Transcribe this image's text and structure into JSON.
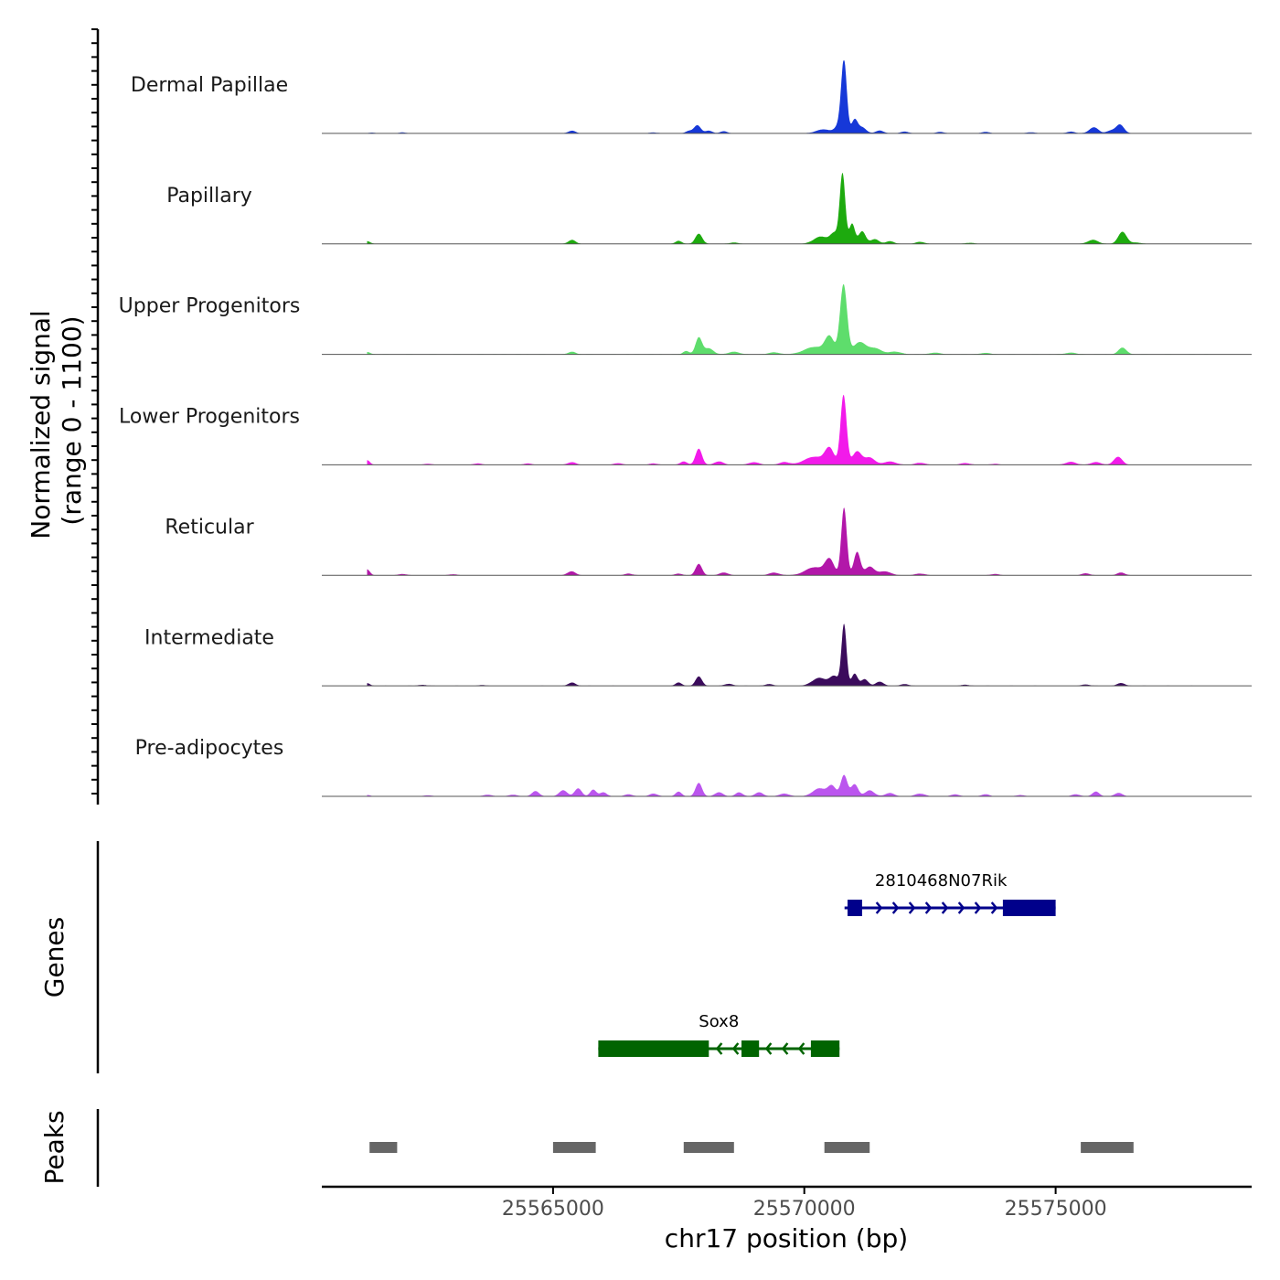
{
  "chart_data": {
    "type": "area",
    "title": "",
    "ylabel": "Normalized signal\n(range 0 - 1100)",
    "ylabel_lines": [
      "Normalized signal",
      "(range 0 - 1100)"
    ],
    "xlabel": "chr17 position (bp)",
    "xlim": [
      25560400,
      25578900
    ],
    "ylim": [
      0,
      1100
    ],
    "xticks": [
      25565000,
      25570000,
      25575000
    ],
    "xtick_labels": [
      "25565000",
      "25570000",
      "25575000"
    ],
    "tracks": [
      {
        "name": "Dermal Papillae",
        "color": "#1638D8",
        "peaks": [
          [
            25561400,
            10,
            60
          ],
          [
            25562000,
            15,
            60
          ],
          [
            25565380,
            40,
            70
          ],
          [
            25567000,
            12,
            80
          ],
          [
            25567870,
            120,
            70
          ],
          [
            25567700,
            35,
            60
          ],
          [
            25568100,
            40,
            70
          ],
          [
            25568400,
            30,
            70
          ],
          [
            25570380,
            60,
            140
          ],
          [
            25570700,
            130,
            80
          ],
          [
            25570790,
            1050,
            55
          ],
          [
            25571000,
            200,
            60
          ],
          [
            25571150,
            90,
            80
          ],
          [
            25571500,
            40,
            80
          ],
          [
            25572000,
            25,
            80
          ],
          [
            25572700,
            20,
            80
          ],
          [
            25573600,
            20,
            80
          ],
          [
            25574500,
            15,
            80
          ],
          [
            25575300,
            25,
            80
          ],
          [
            25575760,
            90,
            90
          ],
          [
            25576280,
            130,
            80
          ],
          [
            25576100,
            40,
            80
          ]
        ]
      },
      {
        "name": "Papillary",
        "color": "#1DAA0E",
        "peaks": [
          [
            25561300,
            40,
            60
          ],
          [
            25565380,
            60,
            70
          ],
          [
            25567500,
            45,
            60
          ],
          [
            25567900,
            150,
            70
          ],
          [
            25568600,
            20,
            80
          ],
          [
            25570330,
            110,
            140
          ],
          [
            25570600,
            150,
            80
          ],
          [
            25570760,
            1050,
            55
          ],
          [
            25570950,
            300,
            55
          ],
          [
            25571150,
            190,
            70
          ],
          [
            25571400,
            70,
            80
          ],
          [
            25571700,
            40,
            80
          ],
          [
            25572300,
            30,
            80
          ],
          [
            25575740,
            60,
            100
          ],
          [
            25576330,
            180,
            85
          ],
          [
            25576600,
            20,
            80
          ],
          [
            25573300,
            15,
            80
          ]
        ]
      },
      {
        "name": "Upper Progenitors",
        "color": "#5EDD6C",
        "peaks": [
          [
            25561300,
            35,
            60
          ],
          [
            25565380,
            40,
            70
          ],
          [
            25567650,
            50,
            60
          ],
          [
            25567900,
            250,
            65
          ],
          [
            25568100,
            90,
            90
          ],
          [
            25568600,
            40,
            100
          ],
          [
            25569400,
            30,
            100
          ],
          [
            25570200,
            110,
            200
          ],
          [
            25570500,
            250,
            90
          ],
          [
            25570780,
            1050,
            70
          ],
          [
            25571100,
            180,
            120
          ],
          [
            25571400,
            90,
            130
          ],
          [
            25571800,
            40,
            120
          ],
          [
            25572600,
            25,
            100
          ],
          [
            25573600,
            20,
            100
          ],
          [
            25575300,
            25,
            100
          ],
          [
            25576330,
            100,
            80
          ]
        ]
      },
      {
        "name": "Lower Progenitors",
        "color": "#F21AEA",
        "peaks": [
          [
            25561300,
            70,
            55
          ],
          [
            25562500,
            15,
            80
          ],
          [
            25563500,
            20,
            80
          ],
          [
            25564500,
            20,
            80
          ],
          [
            25565380,
            40,
            80
          ],
          [
            25566300,
            25,
            80
          ],
          [
            25567000,
            20,
            80
          ],
          [
            25567600,
            50,
            70
          ],
          [
            25567900,
            240,
            65
          ],
          [
            25568300,
            50,
            90
          ],
          [
            25569000,
            40,
            100
          ],
          [
            25569600,
            40,
            100
          ],
          [
            25570200,
            120,
            200
          ],
          [
            25570500,
            230,
            90
          ],
          [
            25570780,
            1050,
            60
          ],
          [
            25571050,
            200,
            90
          ],
          [
            25571300,
            110,
            100
          ],
          [
            25571700,
            50,
            120
          ],
          [
            25572300,
            30,
            100
          ],
          [
            25573200,
            25,
            100
          ],
          [
            25573800,
            15,
            80
          ],
          [
            25575300,
            45,
            100
          ],
          [
            25575800,
            40,
            100
          ],
          [
            25576240,
            120,
            85
          ]
        ]
      },
      {
        "name": "Reticular",
        "color": "#B217A9",
        "peaks": [
          [
            25561300,
            90,
            55
          ],
          [
            25562000,
            20,
            80
          ],
          [
            25563000,
            15,
            80
          ],
          [
            25565370,
            60,
            80
          ],
          [
            25566500,
            25,
            80
          ],
          [
            25567500,
            25,
            70
          ],
          [
            25567900,
            170,
            65
          ],
          [
            25568400,
            40,
            90
          ],
          [
            25569400,
            40,
            100
          ],
          [
            25570200,
            120,
            180
          ],
          [
            25570500,
            230,
            90
          ],
          [
            25570790,
            1020,
            55
          ],
          [
            25571050,
            350,
            65
          ],
          [
            25571300,
            130,
            90
          ],
          [
            25571600,
            60,
            120
          ],
          [
            25572300,
            25,
            100
          ],
          [
            25573800,
            20,
            80
          ],
          [
            25575600,
            30,
            80
          ],
          [
            25576300,
            40,
            80
          ]
        ]
      },
      {
        "name": "Intermediate",
        "color": "#3B0B5C",
        "peaks": [
          [
            25561300,
            40,
            55
          ],
          [
            25562400,
            15,
            80
          ],
          [
            25563600,
            10,
            80
          ],
          [
            25565380,
            50,
            70
          ],
          [
            25567500,
            50,
            60
          ],
          [
            25567900,
            140,
            65
          ],
          [
            25568500,
            30,
            80
          ],
          [
            25569300,
            25,
            80
          ],
          [
            25570300,
            120,
            140
          ],
          [
            25570600,
            140,
            90
          ],
          [
            25570790,
            920,
            50
          ],
          [
            25571000,
            180,
            60
          ],
          [
            25571200,
            100,
            70
          ],
          [
            25571500,
            60,
            80
          ],
          [
            25572000,
            25,
            80
          ],
          [
            25573200,
            15,
            80
          ],
          [
            25575600,
            20,
            80
          ],
          [
            25576300,
            40,
            80
          ]
        ]
      },
      {
        "name": "Pre-adipocytes",
        "color": "#BB55EE",
        "peaks": [
          [
            25561300,
            20,
            60
          ],
          [
            25562500,
            15,
            80
          ],
          [
            25563700,
            25,
            80
          ],
          [
            25564200,
            25,
            80
          ],
          [
            25564650,
            80,
            70
          ],
          [
            25565200,
            90,
            80
          ],
          [
            25565500,
            120,
            70
          ],
          [
            25565800,
            100,
            60
          ],
          [
            25566000,
            60,
            70
          ],
          [
            25566500,
            30,
            80
          ],
          [
            25567000,
            40,
            80
          ],
          [
            25567500,
            70,
            60
          ],
          [
            25567900,
            200,
            65
          ],
          [
            25568300,
            60,
            80
          ],
          [
            25568700,
            60,
            70
          ],
          [
            25569100,
            60,
            80
          ],
          [
            25569600,
            40,
            100
          ],
          [
            25570300,
            120,
            130
          ],
          [
            25570550,
            150,
            80
          ],
          [
            25570790,
            320,
            65
          ],
          [
            25571000,
            180,
            70
          ],
          [
            25571300,
            90,
            90
          ],
          [
            25571700,
            50,
            90
          ],
          [
            25572300,
            40,
            100
          ],
          [
            25573000,
            30,
            80
          ],
          [
            25573600,
            30,
            80
          ],
          [
            25574300,
            20,
            80
          ],
          [
            25575400,
            30,
            80
          ],
          [
            25575800,
            70,
            70
          ],
          [
            25576250,
            50,
            80
          ]
        ]
      }
    ],
    "genes": [
      {
        "name": "2810468N07Rik",
        "strand": "+",
        "color": "#00008B",
        "start": 25570800,
        "end": 25575000,
        "exons": [
          [
            25570860,
            25571150
          ],
          [
            25573950,
            25575000
          ]
        ]
      },
      {
        "name": "Sox8",
        "strand": "-",
        "color": "#006400",
        "start": 25565900,
        "end": 25570700,
        "exons": [
          [
            25565900,
            25568100
          ],
          [
            25568750,
            25569100
          ],
          [
            25570130,
            25570700
          ]
        ]
      }
    ],
    "peaks_track": [
      [
        25561350,
        25561900
      ],
      [
        25565000,
        25565850
      ],
      [
        25567600,
        25568600
      ],
      [
        25570400,
        25571300
      ],
      [
        25575500,
        25576550
      ]
    ],
    "panel_labels": {
      "genes": "Genes",
      "peaks": "Peaks"
    },
    "colors": {
      "peak_bar": "#666666",
      "baseline": "#555555",
      "axis": "#000000"
    }
  }
}
